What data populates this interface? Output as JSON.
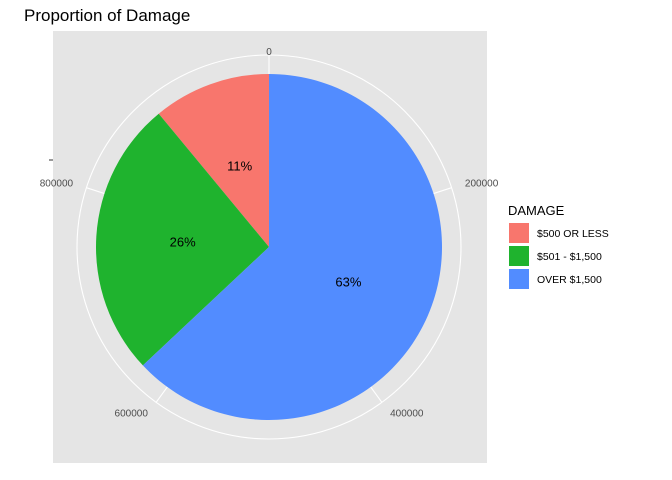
{
  "chart_data": {
    "type": "pie",
    "title": "Proportion of Damage",
    "legend_title": "DAMAGE",
    "legend_position": "right",
    "theta_ticks": [
      "0",
      "200000",
      "400000",
      "600000",
      "800000"
    ],
    "theta_tick_values": [
      0,
      200000,
      400000,
      600000,
      800000
    ],
    "total": 1000000,
    "grid": true,
    "slices": [
      {
        "label": "$500 OR LESS",
        "value": 110000,
        "percent_label": "11%",
        "color": "#F8766D"
      },
      {
        "label": "$501 - $1,500",
        "value": 260000,
        "percent_label": "26%",
        "color": "#1FB32E"
      },
      {
        "label": "OVER $1,500",
        "value": 630000,
        "percent_label": "63%",
        "color": "#528CFF"
      }
    ]
  }
}
